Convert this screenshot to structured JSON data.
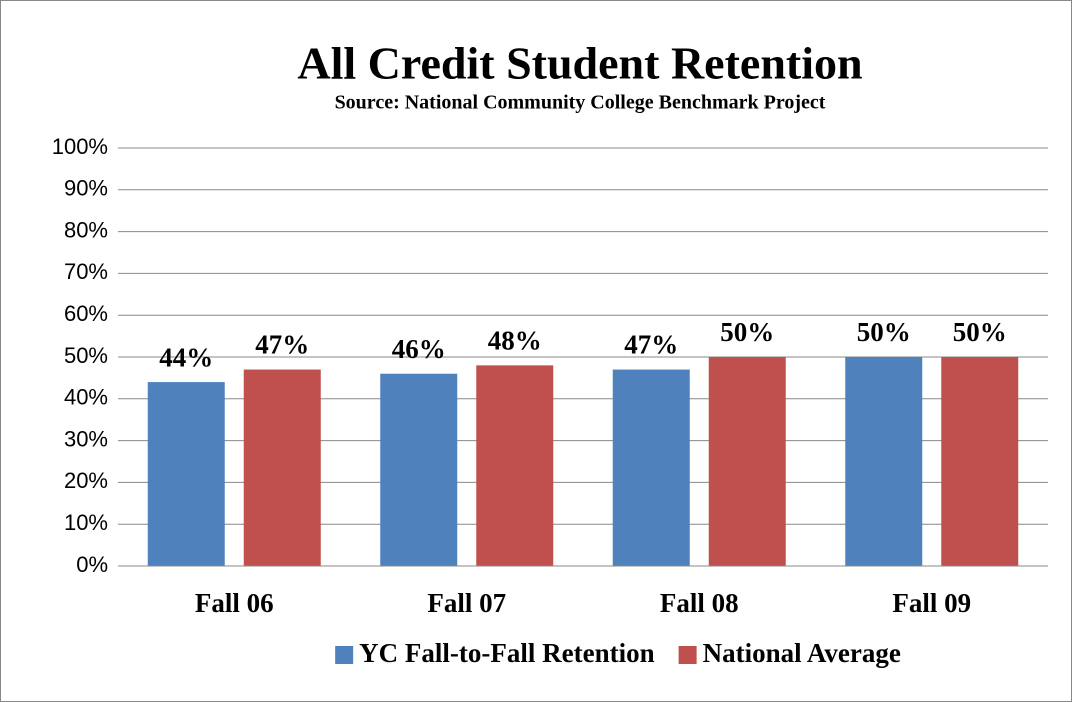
{
  "chart_data": {
    "type": "bar",
    "title": "All Credit Student Retention",
    "subtitle": "Source:  National Community College Benchmark Project",
    "categories": [
      "Fall 06",
      "Fall 07",
      "Fall 08",
      "Fall 09"
    ],
    "series": [
      {
        "name": "YC Fall-to-Fall Retention",
        "color": "#4f81bd",
        "values": [
          44,
          46,
          47,
          50
        ],
        "value_labels": [
          "44%",
          "46%",
          "47%",
          "50%"
        ]
      },
      {
        "name": "National Average",
        "color": "#c0504d",
        "values": [
          47,
          48,
          50,
          50
        ],
        "value_labels": [
          "47%",
          "48%",
          "50%",
          "50%"
        ]
      }
    ],
    "ylim": [
      0,
      100
    ],
    "yticks": [
      {
        "value": 0,
        "label": "0%"
      },
      {
        "value": 10,
        "label": "10%"
      },
      {
        "value": 20,
        "label": "20%"
      },
      {
        "value": 30,
        "label": "30%"
      },
      {
        "value": 40,
        "label": "40%"
      },
      {
        "value": 50,
        "label": "50%"
      },
      {
        "value": 60,
        "label": "60%"
      },
      {
        "value": 70,
        "label": "70%"
      },
      {
        "value": 80,
        "label": "80%"
      },
      {
        "value": 90,
        "label": "90%"
      },
      {
        "value": 100,
        "label": "100%"
      }
    ],
    "grid": true,
    "legend": "bottom"
  }
}
